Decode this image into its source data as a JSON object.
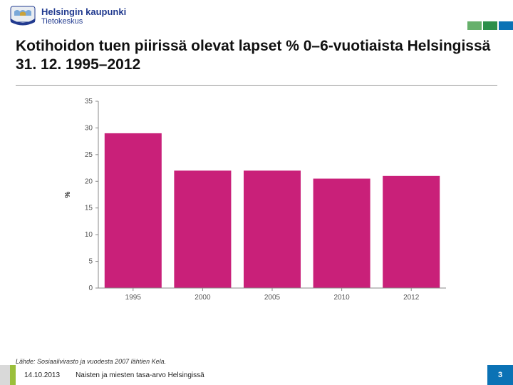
{
  "org": {
    "title": "Helsingin kaupunki",
    "subtitle": "Tietokeskus",
    "title_color": "#213a8f"
  },
  "decor": {
    "colors": [
      "#66b06b",
      "#2c8f4a",
      "#0b72b5"
    ]
  },
  "slide": {
    "title": "Kotihoidon tuen piirissä olevat lapset % 0–6-vuotiaista Helsingissä 31. 12. 1995–2012",
    "title_fontsize": 21,
    "source": "Lähde: Sosiaalivirasto ja vuodesta 2007 lähtien Kela."
  },
  "chart": {
    "type": "bar",
    "categories": [
      "1995",
      "2000",
      "2005",
      "2010",
      "2012"
    ],
    "values": [
      29,
      22,
      22,
      20.5,
      21
    ],
    "bar_color": "#c92079",
    "ylabel": "%",
    "ylim": [
      0,
      35
    ],
    "ytick_step": 5,
    "yticks": [
      0,
      5,
      10,
      15,
      20,
      25,
      30,
      35
    ],
    "bar_width": 0.82,
    "axis_color": "#888888",
    "background_color": "#ffffff",
    "label_fontsize": 10
  },
  "footer": {
    "date": "14.10.2013",
    "topic": "Naisten ja miesten tasa-arvo Helsingissä",
    "page": "3",
    "accent_color": "#9bbf3b",
    "left_color": "#d9d9d9",
    "page_bg": "#0b72b5"
  }
}
